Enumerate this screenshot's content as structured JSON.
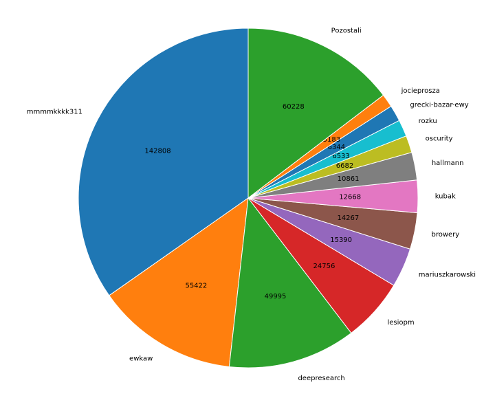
{
  "chart_data": {
    "type": "pie",
    "categories": [
      "mmmmkkkk311",
      "ewkaw",
      "deepresearch",
      "lesiopm",
      "mariuszkarowski",
      "browery",
      "kubak",
      "hallmann",
      "oscurity",
      "rozku",
      "grecki-bazar-ewy",
      "jocieprosza",
      "Pozostali"
    ],
    "values": [
      142808,
      55422,
      49995,
      24756,
      15390,
      14267,
      12668,
      10861,
      6682,
      6533,
      6344,
      5183,
      60228
    ],
    "colors": [
      "#1f77b4",
      "#ff7f0e",
      "#2ca02c",
      "#d62728",
      "#9467bd",
      "#8c564b",
      "#e377c2",
      "#7f7f7f",
      "#bcbd22",
      "#17becf",
      "#1f77b4",
      "#ff7f0e",
      "#2ca02c"
    ]
  }
}
